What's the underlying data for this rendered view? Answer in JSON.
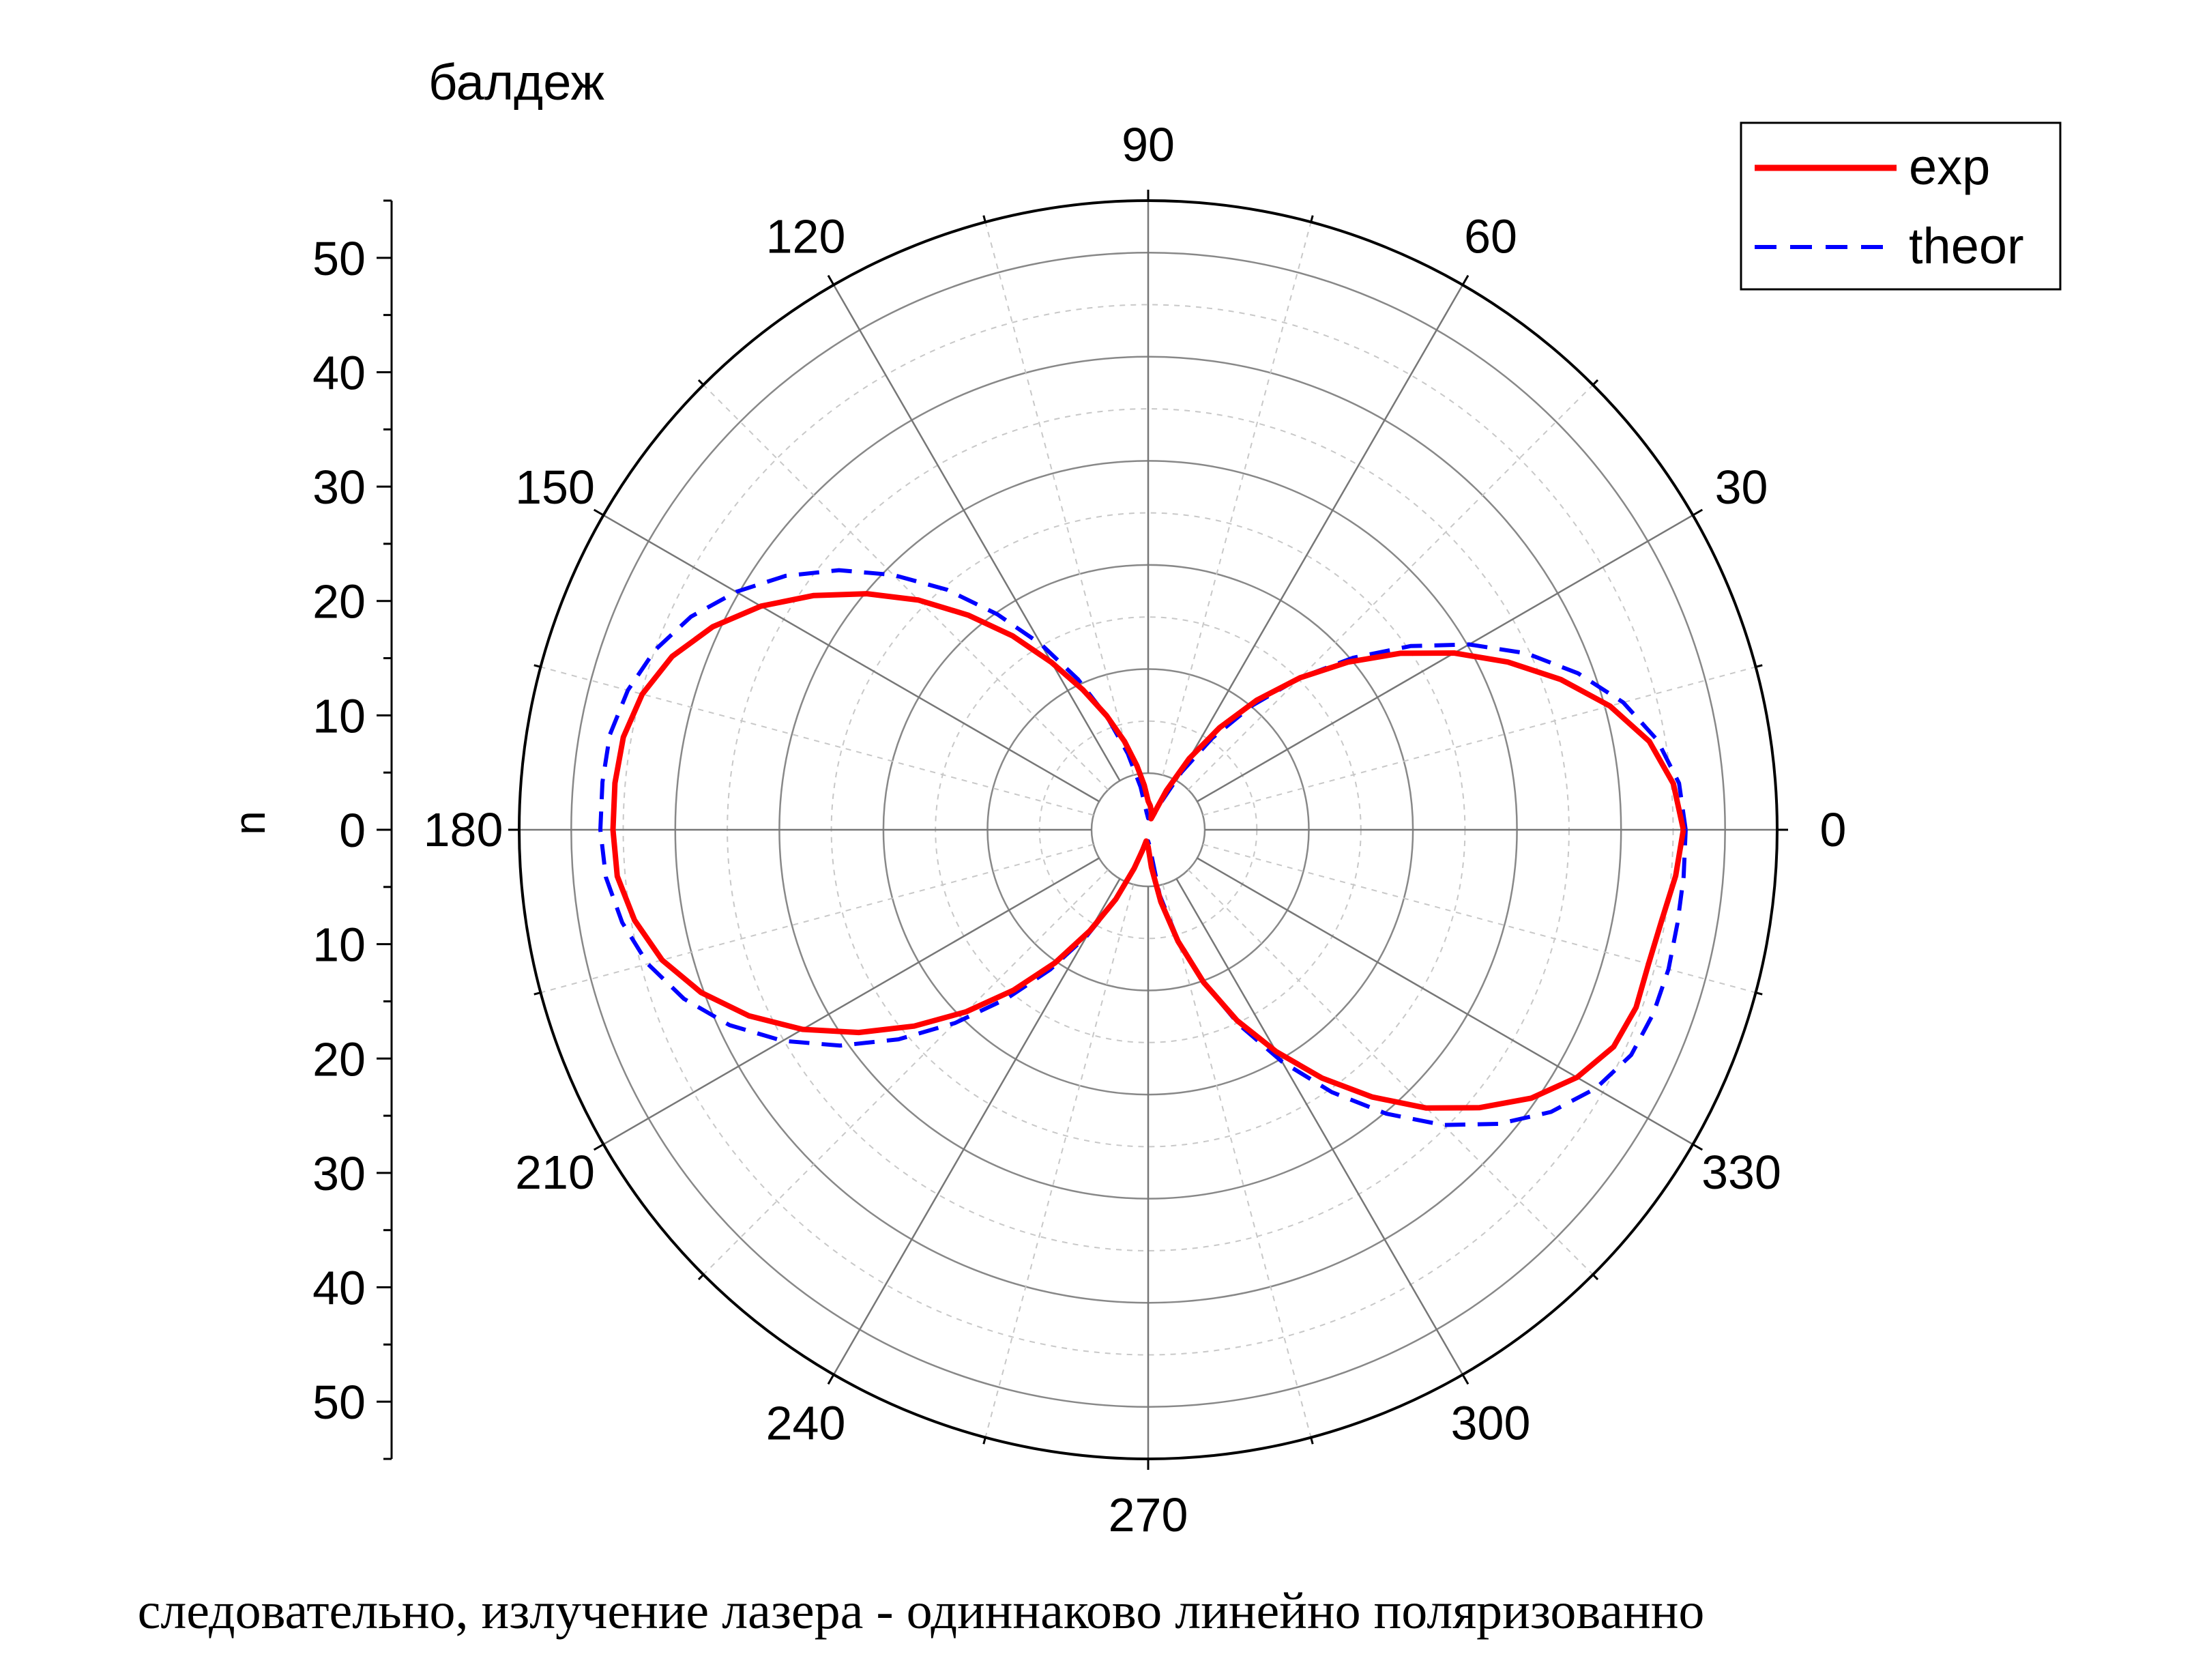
{
  "chart_data": {
    "type": "line",
    "subtype": "polar",
    "title": "балдеж",
    "caption": "следовательно, излучение лазера - одиннаково линейно поляризованно",
    "radial_axis": {
      "label": "n",
      "range": [
        0,
        55
      ],
      "ticks": [
        0,
        10,
        20,
        30,
        40,
        50
      ],
      "minor_step": 5
    },
    "angular_axis": {
      "unit": "degrees",
      "labels": [
        0,
        30,
        60,
        90,
        120,
        150,
        180,
        210,
        240,
        270,
        300,
        330
      ],
      "grid_major_step": 30,
      "grid_minor_step": 15
    },
    "grid": true,
    "legend_position": "top-right",
    "series": [
      {
        "name": "exp",
        "color": "#ff0000",
        "style": "solid",
        "theta": [
          0,
          5,
          10,
          15,
          20,
          25,
          30,
          35,
          40,
          45,
          50,
          55,
          60,
          65,
          70,
          75,
          80,
          85,
          90,
          95,
          100,
          105,
          110,
          115,
          120,
          125,
          130,
          135,
          140,
          145,
          150,
          155,
          160,
          165,
          170,
          175,
          180,
          185,
          190,
          195,
          200,
          205,
          210,
          215,
          220,
          225,
          230,
          235,
          240,
          245,
          250,
          255,
          260,
          265,
          270,
          275,
          280,
          285,
          290,
          295,
          300,
          305,
          310,
          315,
          320,
          325,
          330,
          335,
          340,
          345,
          350,
          355,
          360
        ],
        "r": [
          46.8,
          46.1,
          44.5,
          41.8,
          38.4,
          34.7,
          30.9,
          26.9,
          22.8,
          18.8,
          14.8,
          10.9,
          7.2,
          3.8,
          1.6,
          1.0,
          1.6,
          2.1,
          2.5,
          3.9,
          5.7,
          8.0,
          10.6,
          13.5,
          16.9,
          20.7,
          24.5,
          28.4,
          32.1,
          35.7,
          39.1,
          42.0,
          44.3,
          45.8,
          46.6,
          46.8,
          46.8,
          46.6,
          45.6,
          44.0,
          41.6,
          38.5,
          34.9,
          30.9,
          26.7,
          22.5,
          18.3,
          14.2,
          10.2,
          6.7,
          3.6,
          1.8,
          1.0,
          1.2,
          1.5,
          3.3,
          6.4,
          10.1,
          14.2,
          18.4,
          22.4,
          26.5,
          30.5,
          34.4,
          37.8,
          40.9,
          43.3,
          44.9,
          45.4,
          45.3,
          45.6,
          46.3,
          46.8
        ]
      },
      {
        "name": "theor",
        "color": "#0000ff",
        "style": "dashed",
        "theta": [
          0,
          5,
          10,
          15,
          20,
          25,
          30,
          35,
          40,
          45,
          50,
          55,
          60,
          65,
          70,
          75,
          80,
          85,
          90,
          95,
          100,
          105,
          110,
          115,
          120,
          125,
          130,
          135,
          140,
          145,
          150,
          155,
          160,
          165,
          170,
          175,
          180,
          185,
          190,
          195,
          200,
          205,
          210,
          215,
          220,
          225,
          230,
          235,
          240,
          245,
          250,
          255,
          260,
          265,
          270,
          275,
          280,
          285,
          290,
          295,
          300,
          305,
          310,
          315,
          320,
          325,
          330,
          335,
          340,
          345,
          350,
          355,
          360
        ],
        "r": [
          47.0,
          46.6,
          45.2,
          43.0,
          40.0,
          36.5,
          32.4,
          28.0,
          23.4,
          18.8,
          14.2,
          9.8,
          5.8,
          2.6,
          1.2,
          1.0,
          1.0,
          1.0,
          1.0,
          1.5,
          3.8,
          6.9,
          10.5,
          14.5,
          18.7,
          23.0,
          27.4,
          31.5,
          35.3,
          38.7,
          41.6,
          44.1,
          45.9,
          47.1,
          47.8,
          47.9,
          47.9,
          47.6,
          46.7,
          45.3,
          43.2,
          40.4,
          36.9,
          32.9,
          28.5,
          23.9,
          19.3,
          14.9,
          10.7,
          6.9,
          3.6,
          1.4,
          1.0,
          1.0,
          1.0,
          1.4,
          5.8,
          9.8,
          14.2,
          18.8,
          23.4,
          28.0,
          32.4,
          36.5,
          40.0,
          43.0,
          45.2,
          46.6,
          47.0,
          47.1,
          47.0,
          47.0,
          47.0
        ]
      }
    ]
  }
}
